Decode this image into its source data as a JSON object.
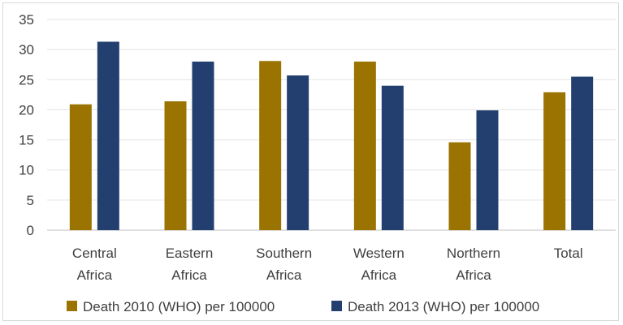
{
  "chart_data": {
    "type": "bar",
    "title": "",
    "xlabel": "",
    "ylabel": "",
    "ylim": [
      0,
      35
    ],
    "yticks": [
      0,
      5,
      10,
      15,
      20,
      25,
      30,
      35
    ],
    "grid": true,
    "legend_position": "bottom",
    "categories": [
      [
        "Central",
        "Africa"
      ],
      [
        "Eastern",
        "Africa"
      ],
      [
        "Southern",
        "Africa"
      ],
      [
        "Western",
        "Africa"
      ],
      [
        "Northern",
        "Africa"
      ],
      [
        "Total"
      ]
    ],
    "series": [
      {
        "name": "Death 2010 (WHO) per 100000",
        "color": "#9a7300",
        "values": [
          20.9,
          21.4,
          28.1,
          28.0,
          14.6,
          22.9
        ]
      },
      {
        "name": "Death 2013 (WHO) per 100000",
        "color": "#233f70",
        "values": [
          31.3,
          28.0,
          25.7,
          24.0,
          19.9,
          25.5
        ]
      }
    ]
  }
}
